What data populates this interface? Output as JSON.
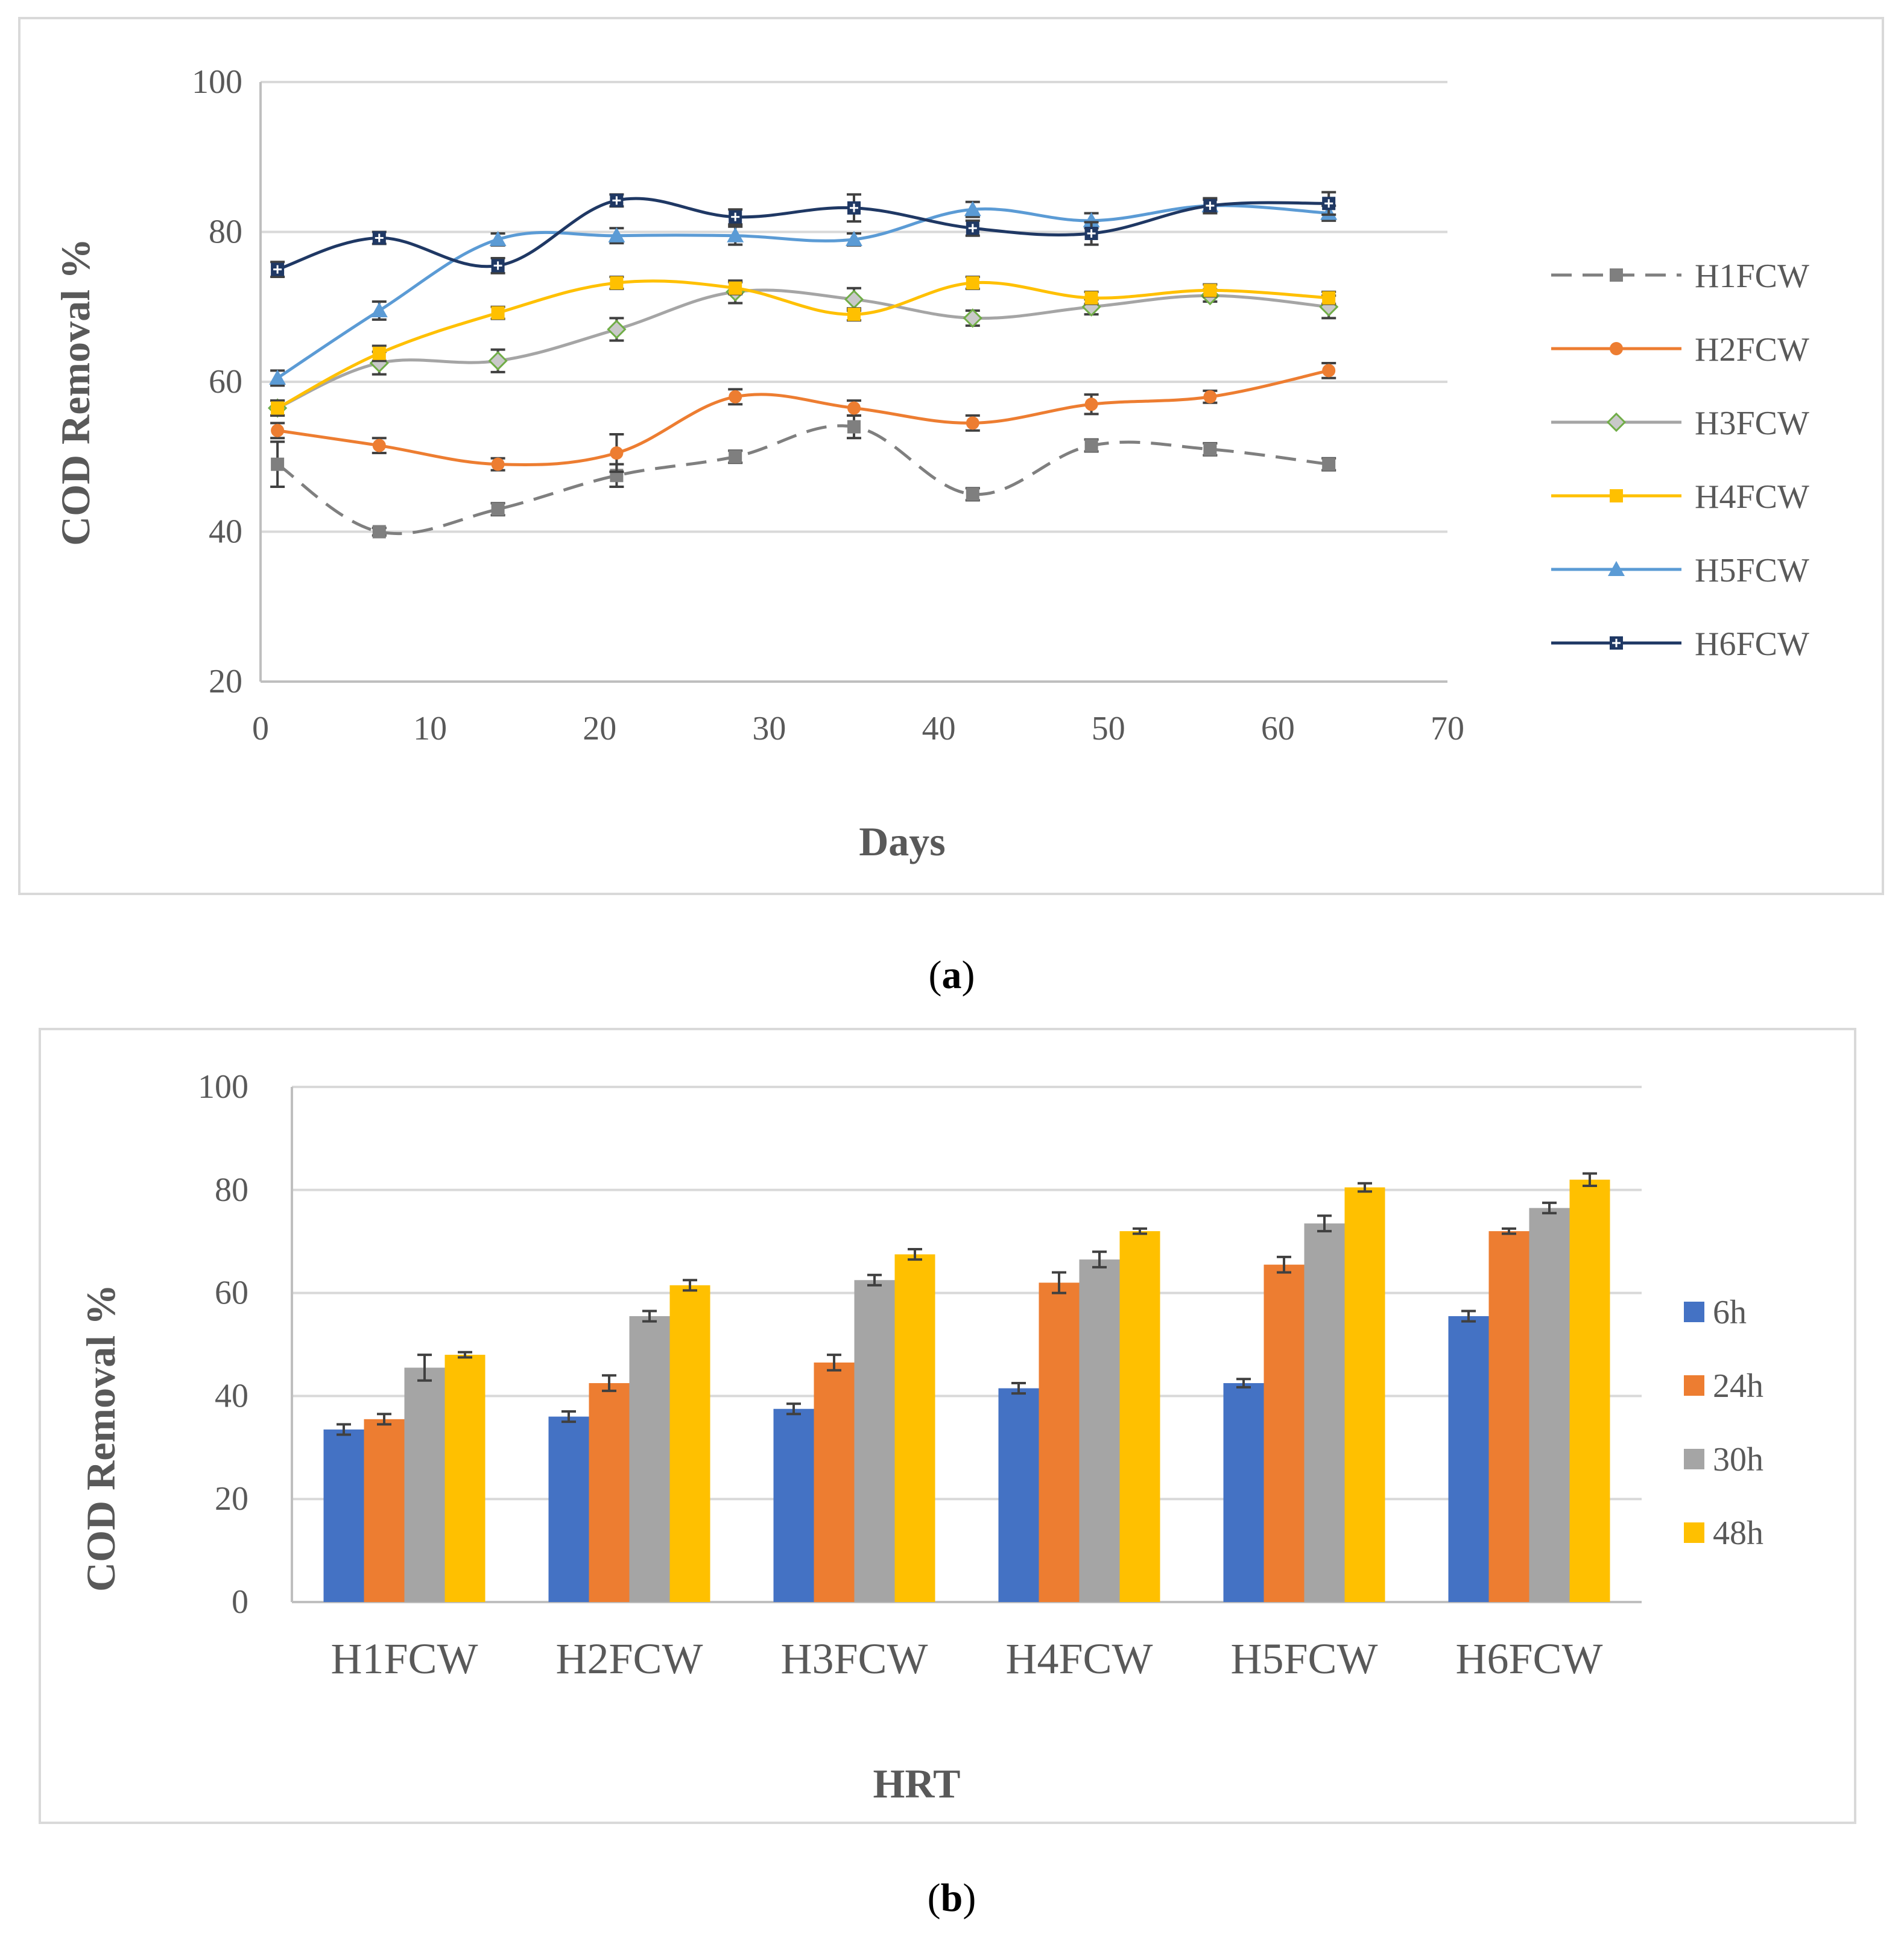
{
  "charts": [
    {
      "caption_letter": "a",
      "colors": {
        "frame": "#d9d9d9",
        "grid": "#d9d9d9",
        "axis": "#bfbfbf",
        "errorbar": "#404040"
      }
    },
    {
      "caption_letter": "b",
      "colors": {
        "frame": "#d9d9d9",
        "grid": "#d9d9d9",
        "axis": "#bfbfbf",
        "errorbar": "#404040"
      }
    }
  ],
  "chart_data": [
    {
      "type": "line",
      "xlabel": "Days",
      "ylabel": "COD Removal %",
      "xlim": [
        0,
        70
      ],
      "ylim": [
        20,
        100
      ],
      "x_ticks": [
        "0",
        "10",
        "20",
        "30",
        "40",
        "50",
        "60",
        "70"
      ],
      "y_ticks": [
        "20",
        "40",
        "60",
        "80",
        "100"
      ],
      "grid": "horizontal",
      "legend": "right",
      "x": [
        1,
        7,
        14,
        21,
        28,
        35,
        42,
        49,
        56,
        63
      ],
      "series": [
        {
          "name": "H1FCW",
          "color": "#7f7f7f",
          "marker": "square",
          "dash": true,
          "values": [
            49,
            40,
            43,
            47.5,
            50,
            54,
            45,
            51.5,
            51,
            49
          ],
          "errors": [
            3,
            0.5,
            0.8,
            1.5,
            0.8,
            1.5,
            0.8,
            0.8,
            0.8,
            0.8
          ]
        },
        {
          "name": "H2FCW",
          "color": "#ed7d31",
          "marker": "circle",
          "dash": false,
          "values": [
            53.5,
            51.5,
            49,
            50.5,
            58,
            56.5,
            54.5,
            57,
            58,
            61.5
          ],
          "errors": [
            1,
            1,
            0.8,
            2.5,
            1,
            1,
            1,
            1.3,
            0.8,
            1
          ]
        },
        {
          "name": "H3FCW",
          "color": "#a5a5a5",
          "marker": "diamond",
          "dash": false,
          "values": [
            56.5,
            62.5,
            62.8,
            67,
            72,
            71,
            68.5,
            70,
            71.5,
            70
          ],
          "errors": [
            1,
            1.5,
            1.5,
            1.5,
            1.5,
            1.5,
            1,
            1,
            0.8,
            1.5
          ]
        },
        {
          "name": "H4FCW",
          "color": "#ffc000",
          "marker": "square",
          "dash": false,
          "values": [
            56.5,
            63.8,
            69.2,
            73.2,
            72.5,
            69,
            73.2,
            71.2,
            72.2,
            71.2
          ],
          "errors": [
            1,
            1,
            0.8,
            0.8,
            0.8,
            0.8,
            0.8,
            0.8,
            0.8,
            0.8
          ]
        },
        {
          "name": "H5FCW",
          "color": "#5b9bd5",
          "marker": "triangle",
          "dash": false,
          "values": [
            60.5,
            69.5,
            79,
            79.5,
            79.5,
            79,
            83,
            81.5,
            83.5,
            82.5
          ],
          "errors": [
            1,
            1.2,
            0.8,
            1,
            1.2,
            0.8,
            1,
            1,
            0.8,
            1
          ]
        },
        {
          "name": "H6FCW",
          "color": "#1f3864",
          "marker": "plus",
          "dash": false,
          "values": [
            75,
            79.2,
            75.5,
            84.2,
            82,
            83.2,
            80.5,
            79.8,
            83.5,
            83.8
          ],
          "errors": [
            1,
            0.8,
            1,
            0.8,
            1,
            1.8,
            1,
            1.5,
            1,
            1.5
          ]
        }
      ]
    },
    {
      "type": "bar",
      "xlabel": "HRT",
      "ylabel": "COD Removal %",
      "ylim": [
        0,
        100
      ],
      "y_ticks": [
        "0",
        "20",
        "40",
        "60",
        "80",
        "100"
      ],
      "grid": "horizontal",
      "legend": "right",
      "categories": [
        "H1FCW",
        "H2FCW",
        "H3FCW",
        "H4FCW",
        "H5FCW",
        "H6FCW"
      ],
      "series": [
        {
          "name": "6h",
          "color": "#4472c4",
          "values": [
            33.5,
            36,
            37.5,
            41.5,
            42.5,
            55.5
          ],
          "errors": [
            1,
            1,
            1,
            1,
            0.8,
            1
          ]
        },
        {
          "name": "24h",
          "color": "#ed7d31",
          "values": [
            35.5,
            42.5,
            46.5,
            62,
            65.5,
            72
          ],
          "errors": [
            1,
            1.5,
            1.5,
            2,
            1.5,
            0.5
          ]
        },
        {
          "name": "30h",
          "color": "#a5a5a5",
          "values": [
            45.5,
            55.5,
            62.5,
            66.5,
            73.5,
            76.5
          ],
          "errors": [
            2.5,
            1,
            1,
            1.5,
            1.5,
            1
          ]
        },
        {
          "name": "48h",
          "color": "#ffc000",
          "values": [
            48,
            61.5,
            67.5,
            72,
            80.5,
            82
          ],
          "errors": [
            0.5,
            1,
            1,
            0.5,
            0.8,
            1.2
          ]
        }
      ]
    }
  ]
}
